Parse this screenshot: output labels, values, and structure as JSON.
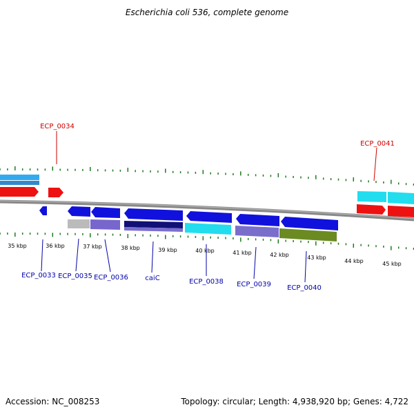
{
  "title": "Escherichia coli 536, complete genome",
  "footer": {
    "accession": "Accession: NC_008253",
    "summary": "Topology: circular; Length: 4,938,920 bp; Genes: 4,722"
  },
  "colors": {
    "forward_label": "#cc0000",
    "reverse_label": "#0000aa",
    "tick": "#1f7a1f",
    "backbone": "#888888",
    "forward_gene": "#ee1111",
    "reverse_gene": "#1111dd",
    "cyan_gene": "#22ddee",
    "light_blue": "#33aaee",
    "grey_gene": "#bbbbbb",
    "lavender": "#7766cc",
    "navy": "#101077",
    "olive": "#6b8a22",
    "medium_purple": "#7a6ecc"
  },
  "scale": {
    "unit": "kbp",
    "labels": [
      "35 kbp",
      "36 kbp",
      "37 kbp",
      "38 kbp",
      "39 kbp",
      "40 kbp",
      "41 kbp",
      "42 kbp",
      "43 kbp",
      "44 kbp",
      "45 kbp"
    ]
  },
  "genes": {
    "forward": [
      {
        "id": "ECP_0034",
        "label": "ECP_0034"
      },
      {
        "id": "ECP_0041",
        "label": "ECP_0041"
      }
    ],
    "reverse": [
      {
        "id": "ECP_0033",
        "label": "ECP_0033"
      },
      {
        "id": "ECP_0035",
        "label": "ECP_0035"
      },
      {
        "id": "ECP_0036",
        "label": "ECP_0036"
      },
      {
        "id": "caiC",
        "label": "caiC"
      },
      {
        "id": "ECP_0038",
        "label": "ECP_0038"
      },
      {
        "id": "ECP_0039",
        "label": "ECP_0039"
      },
      {
        "id": "ECP_0040",
        "label": "ECP_0040"
      }
    ]
  }
}
